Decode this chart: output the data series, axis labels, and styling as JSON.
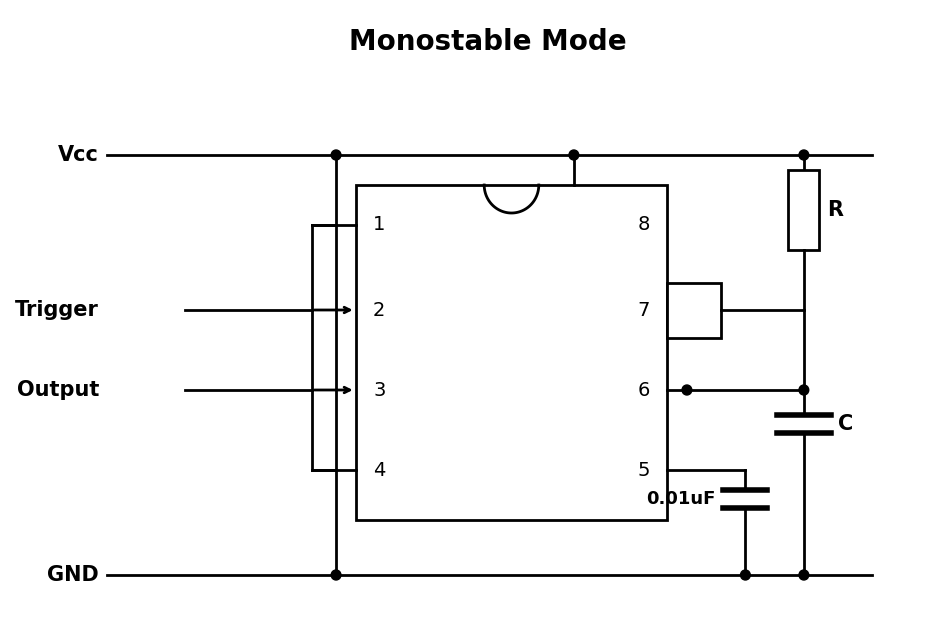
{
  "title": "Monostable Mode",
  "title_fontsize": 20,
  "title_fontweight": "bold",
  "bg_color": "#ffffff",
  "line_color": "#000000",
  "lw": 2.0,
  "pin_labels_left": [
    "1",
    "2",
    "3",
    "4"
  ],
  "pin_labels_right": [
    "8",
    "7",
    "6",
    "5"
  ],
  "signal_label_vcc": "Vcc",
  "signal_label_trigger": "Trigger",
  "signal_label_output": "Output",
  "signal_label_gnd": "GND",
  "component_label_R": "R",
  "component_label_C": "C",
  "cap_label": "0.01uF"
}
